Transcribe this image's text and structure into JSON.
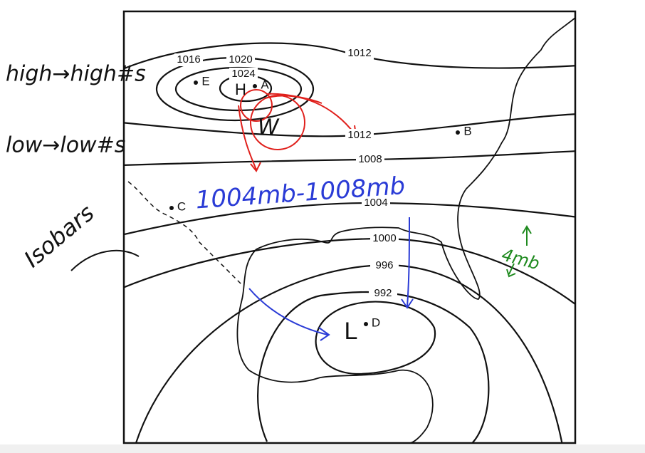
{
  "map": {
    "isobar_labels": [
      "1016",
      "1020",
      "1024",
      "1012",
      "1012",
      "1008",
      "1004",
      "1000",
      "996",
      "992"
    ],
    "stations": [
      "E",
      "A",
      "B",
      "C",
      "D"
    ],
    "pressure_centers": [
      "H",
      "L"
    ],
    "annotations": {
      "high_rule": "high→high#s",
      "low_rule": "low→low#s",
      "isobars": "Isobars",
      "range": "1004mb-1008mb",
      "interval": "4mb",
      "wind": "W"
    }
  }
}
